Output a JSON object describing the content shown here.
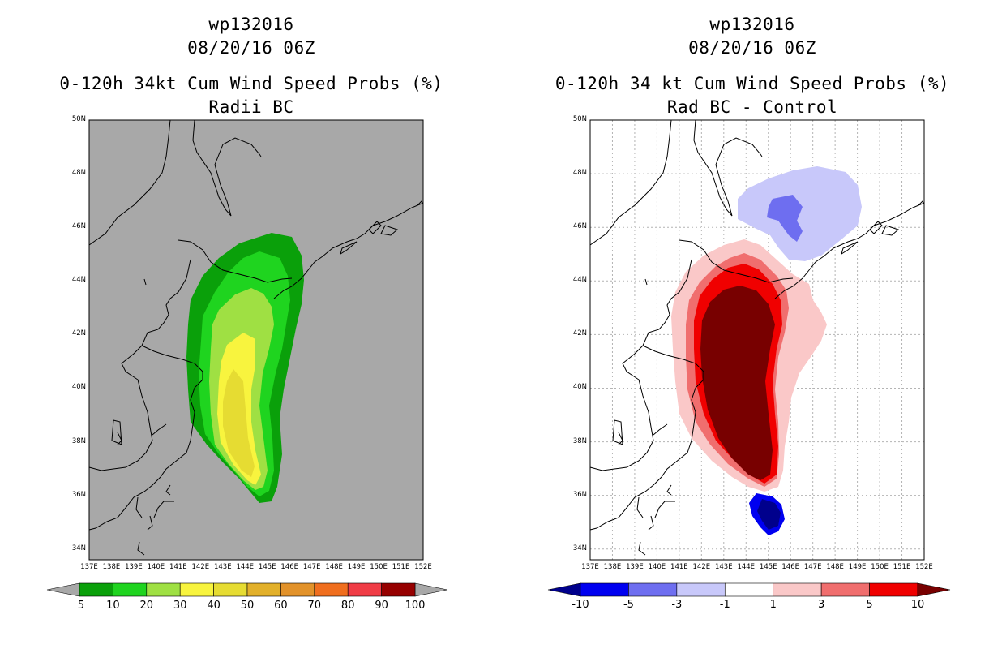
{
  "left_panel": {
    "title_lines": [
      "wp132016",
      "08/20/16 06Z",
      "0-120h 34kt Cum Wind Speed Probs (%)",
      "Radii BC"
    ],
    "background_color": "#a8a8a8",
    "colorbar": {
      "colors": [
        "#0aa00a",
        "#1fd41f",
        "#9fe043",
        "#f8f43e",
        "#e6dc32",
        "#e2b02a",
        "#e2922a",
        "#f06e1e",
        "#f03c46",
        "#960000",
        "#7e1ee6"
      ],
      "labels": [
        "5",
        "10",
        "20",
        "30",
        "40",
        "50",
        "60",
        "70",
        "80",
        "90",
        "100"
      ]
    },
    "fields": [
      {
        "label": "5",
        "color": "#0aa00a"
      },
      {
        "label": "10",
        "color": "#1fd41f"
      },
      {
        "label": "20",
        "color": "#9fe043"
      },
      {
        "label": "30",
        "color": "#f8f43e"
      },
      {
        "label": "40",
        "color": "#e6dc32"
      }
    ]
  },
  "right_panel": {
    "title_lines": [
      "wp132016",
      "08/20/16 06Z",
      "0-120h 34 kt Cum Wind Speed Probs (%)",
      "Rad BC - Control"
    ],
    "background_color": "#ffffff",
    "colorbar": {
      "colors": [
        "#00008c",
        "#0000f0",
        "#6e6ef0",
        "#c8c8fa",
        "#ffffff",
        "#fac8c8",
        "#f06e6e",
        "#f00000",
        "#780000"
      ],
      "labels": [
        "-10",
        "-5",
        "-3",
        "-1",
        "1",
        "3",
        "5",
        "10"
      ]
    }
  },
  "map_axes": {
    "lat_labels": [
      "50N",
      "48N",
      "46N",
      "44N",
      "42N",
      "40N",
      "38N",
      "36N",
      "34N"
    ],
    "lon_labels": [
      "137E",
      "138E",
      "139E",
      "140E",
      "141E",
      "142E",
      "143E",
      "144E",
      "145E",
      "146E",
      "147E",
      "148E",
      "149E",
      "150E",
      "151E",
      "152E"
    ],
    "lat_range": [
      33.6,
      50.0
    ],
    "lon_range": [
      137.0,
      152.0
    ]
  }
}
